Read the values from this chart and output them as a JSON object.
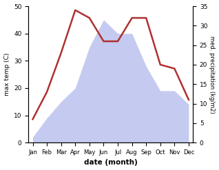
{
  "months": [
    "Jan",
    "Feb",
    "Mar",
    "Apr",
    "May",
    "Jun",
    "Jul",
    "Aug",
    "Sep",
    "Oct",
    "Nov",
    "Dec"
  ],
  "temperature": [
    6,
    13,
    23,
    34,
    32,
    26,
    26,
    32,
    32,
    20,
    19,
    11
  ],
  "precipitation": [
    2,
    9,
    15,
    20,
    35,
    45,
    40,
    40,
    28,
    19,
    19,
    14
  ],
  "temp_color": "#b03030",
  "precip_fill_color": "#c5caf0",
  "xlabel": "date (month)",
  "ylabel_left": "max temp (C)",
  "ylabel_right": "med. precipitation (kg/m2)",
  "ylim_left": [
    0,
    50
  ],
  "ylim_right": [
    0,
    35
  ],
  "yticks_left": [
    0,
    10,
    20,
    30,
    40,
    50
  ],
  "yticks_right": [
    0,
    5,
    10,
    15,
    20,
    25,
    30,
    35
  ],
  "background_color": "#ffffff",
  "line_width": 1.8
}
